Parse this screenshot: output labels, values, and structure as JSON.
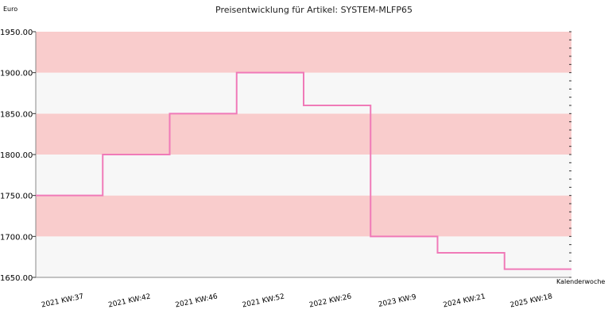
{
  "chart_data": {
    "type": "line",
    "step": true,
    "title": "Preisentwicklung für Artikel: SYSTEM-MLFP65",
    "ylabel": "Euro",
    "xlabel": "Kalenderwoche",
    "ylim": [
      1650,
      1950
    ],
    "y_ticks": [
      "1650.00",
      "1700.00",
      "1750.00",
      "1800.00",
      "1850.00",
      "1900.00",
      "1950.00"
    ],
    "y_tick_values": [
      1650,
      1700,
      1750,
      1800,
      1850,
      1900,
      1950
    ],
    "categories": [
      "2021 KW:37",
      "2021 KW:42",
      "2021 KW:46",
      "2021 KW:52",
      "2022 KW:26",
      "2023 KW:9",
      "2024 KW:21",
      "2025 KW:18"
    ],
    "series": [
      {
        "values": [
          1750,
          1800,
          1850,
          1900,
          1860,
          1700,
          1680,
          1660
        ],
        "color": "#f07ab8"
      }
    ],
    "band_colors": [
      "#f7f7f7",
      "#f9cccc"
    ],
    "grid": false
  }
}
